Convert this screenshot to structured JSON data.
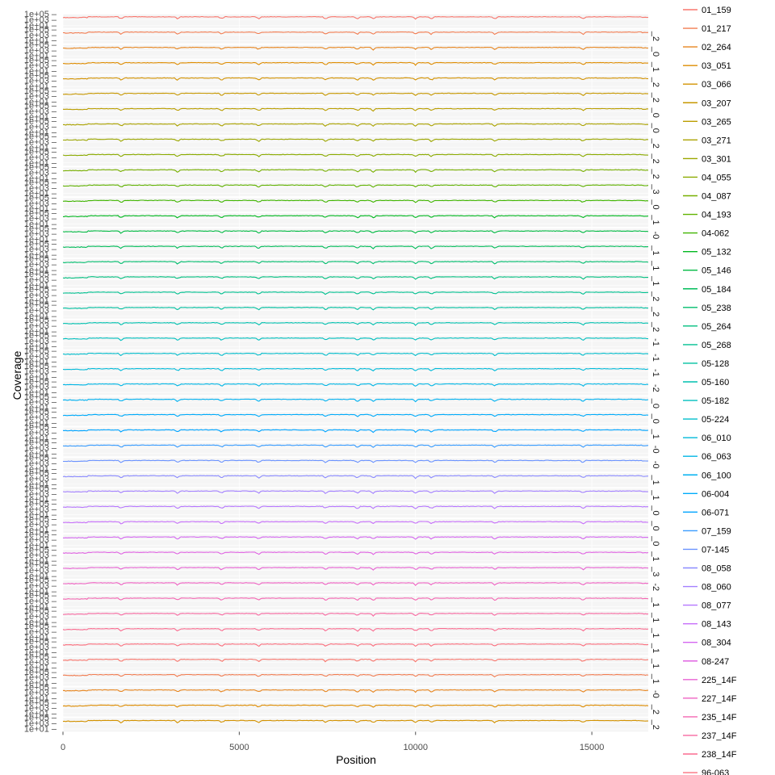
{
  "chart_data": {
    "type": "line",
    "title": "",
    "xlabel": "Position",
    "ylabel": "Coverage",
    "xlim": [
      0,
      16600
    ],
    "x_ticks": [
      0,
      5000,
      10000,
      15000
    ],
    "x_tick_labels": [
      "0",
      "5000",
      "10000",
      "15000"
    ],
    "y_scale": "log10",
    "ylim": [
      1,
      100000
    ],
    "y_tick_labels": [
      "1e+01",
      "1e+03",
      "1e+05"
    ],
    "panel_count": 47,
    "legend_position": "right",
    "facet_strip_labels": [
      "",
      "_2",
      "_0",
      "_1",
      "_2",
      "_2",
      "_0",
      "_0",
      "_2",
      "_2",
      "_2",
      "_3",
      "_0",
      "_1",
      "-0",
      "_1",
      "_1",
      "_1",
      "_2",
      "_2",
      "_2",
      "-1",
      "-1",
      "-1",
      "-2",
      "_0",
      "_0",
      "_1",
      "-0",
      "-0",
      "_1",
      "_1",
      "_0",
      "_0",
      "_0",
      "_1",
      "_3",
      "-2",
      "_1",
      "_1",
      "_1",
      "_1",
      "_1",
      "_1",
      "-0",
      "_2",
      "_2"
    ],
    "dip_positions": [
      1650,
      3250,
      4500,
      5550,
      7450,
      8350,
      8800,
      10000,
      10450,
      12250,
      14750
    ],
    "series": [
      {
        "name": "01_159",
        "color": "#F8766D",
        "baseline": 10500
      },
      {
        "name": "01_217",
        "color": "#F27D52",
        "baseline": 10400
      },
      {
        "name": "02_264",
        "color": "#E7851E",
        "baseline": 10500
      },
      {
        "name": "03_051",
        "color": "#DE8C00",
        "baseline": 10600
      },
      {
        "name": "03_066",
        "color": "#D39200",
        "baseline": 10700
      },
      {
        "name": "03_207",
        "color": "#C79800",
        "baseline": 10600
      },
      {
        "name": "03_265",
        "color": "#BA9E00",
        "baseline": 10400
      },
      {
        "name": "03_271",
        "color": "#ABA300",
        "baseline": 10300
      },
      {
        "name": "03_301",
        "color": "#9CA700",
        "baseline": 10500
      },
      {
        "name": "04_055",
        "color": "#8BAB00",
        "baseline": 10400
      },
      {
        "name": "04_087",
        "color": "#77AF00",
        "baseline": 10400
      },
      {
        "name": "04_193",
        "color": "#60B200",
        "baseline": 10500
      },
      {
        "name": "04-062",
        "color": "#40B500",
        "baseline": 10300
      },
      {
        "name": "05_132",
        "color": "#00B81F",
        "baseline": 10300
      },
      {
        "name": "05_146",
        "color": "#00BA42",
        "baseline": 10400
      },
      {
        "name": "05_184",
        "color": "#00BC59",
        "baseline": 10500
      },
      {
        "name": "05_238",
        "color": "#00BD6D",
        "baseline": 10400
      },
      {
        "name": "05_264",
        "color": "#00BF7F",
        "baseline": 10400
      },
      {
        "name": "05_268",
        "color": "#00C090",
        "baseline": 10500
      },
      {
        "name": "05-128",
        "color": "#00C0A0",
        "baseline": 10400
      },
      {
        "name": "05-160",
        "color": "#00C0AF",
        "baseline": 10500
      },
      {
        "name": "05-182",
        "color": "#00BFBE",
        "baseline": 10400
      },
      {
        "name": "05-224",
        "color": "#00BDCC",
        "baseline": 10400
      },
      {
        "name": "06_010",
        "color": "#00BAD9",
        "baseline": 10300
      },
      {
        "name": "06_063",
        "color": "#00B6E5",
        "baseline": 10500
      },
      {
        "name": "06_100",
        "color": "#00B1F0",
        "baseline": 10500
      },
      {
        "name": "06-004",
        "color": "#00ABFA",
        "baseline": 10400
      },
      {
        "name": "06-071",
        "color": "#00A4FF",
        "baseline": 10400
      },
      {
        "name": "07_159",
        "color": "#389CFF",
        "baseline": 10500
      },
      {
        "name": "07-145",
        "color": "#6B93FF",
        "baseline": 10500
      },
      {
        "name": "08_058",
        "color": "#8B8BFF",
        "baseline": 10400
      },
      {
        "name": "08_060",
        "color": "#A380FF",
        "baseline": 10500
      },
      {
        "name": "08_077",
        "color": "#B677FF",
        "baseline": 10400
      },
      {
        "name": "08_143",
        "color": "#C66EFA",
        "baseline": 10400
      },
      {
        "name": "08_304",
        "color": "#D467F0",
        "baseline": 10400
      },
      {
        "name": "08-247",
        "color": "#DF63E2",
        "baseline": 10500
      },
      {
        "name": "225_14F",
        "color": "#E862D3",
        "baseline": 10400
      },
      {
        "name": "227_14F",
        "color": "#EF63C3",
        "baseline": 10500
      },
      {
        "name": "235_14F",
        "color": "#F466B2",
        "baseline": 10400
      },
      {
        "name": "237_14F",
        "color": "#F869A1",
        "baseline": 10400
      },
      {
        "name": "238_14F",
        "color": "#FA6C90",
        "baseline": 10500
      },
      {
        "name": "96-063",
        "color": "#FB707F",
        "baseline": 10400
      }
    ]
  }
}
